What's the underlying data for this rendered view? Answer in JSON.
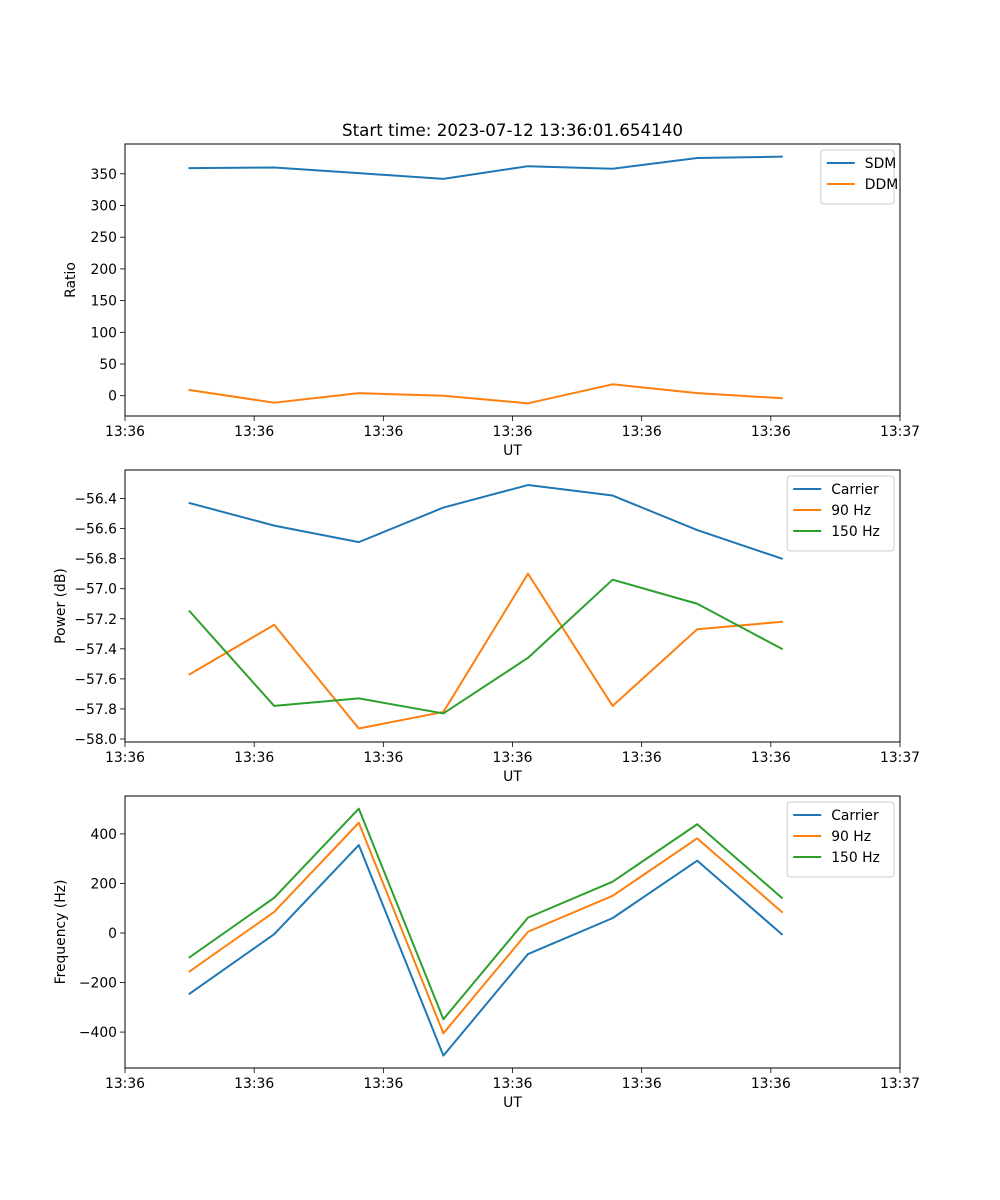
{
  "figure_title": "Start time: 2023-07-12 13:36:01.654140",
  "colors": {
    "blue": "#1f77b4",
    "orange": "#ff7f0e",
    "green": "#2ca02c"
  },
  "chart_data": [
    {
      "type": "line",
      "title": "Start time: 2023-07-12 13:36:01.654140",
      "xlabel": "UT",
      "ylabel": "Ratio",
      "x": [
        0.5,
        1.155,
        1.81,
        2.465,
        3.12,
        3.775,
        4.43,
        5.085
      ],
      "xlim": [
        0,
        6
      ],
      "xticks": [
        0.0,
        1.0,
        2.0,
        3.0,
        4.0,
        5.0,
        6.0
      ],
      "xtick_labels": [
        "13:36",
        "13:36",
        "13:36",
        "13:36",
        "13:36",
        "13:36",
        "13:37"
      ],
      "ylim": [
        -32,
        397
      ],
      "yticks": [
        0,
        50,
        100,
        150,
        200,
        250,
        300,
        350
      ],
      "ytick_labels": [
        "0",
        "50",
        "100",
        "150",
        "200",
        "250",
        "300",
        "350"
      ],
      "legend": "top-right",
      "series": [
        {
          "name": "SDM",
          "color": "blue",
          "values": [
            359,
            360,
            351,
            342,
            362,
            358,
            375,
            377
          ]
        },
        {
          "name": "DDM",
          "color": "orange",
          "values": [
            9,
            -11,
            4,
            0,
            -12,
            18,
            4,
            -4
          ]
        }
      ]
    },
    {
      "type": "line",
      "title": "",
      "xlabel": "UT",
      "ylabel": "Power (dB)",
      "x": [
        0.5,
        1.155,
        1.81,
        2.465,
        3.12,
        3.775,
        4.43,
        5.085
      ],
      "xlim": [
        0,
        6
      ],
      "xticks": [
        0.0,
        1.0,
        2.0,
        3.0,
        4.0,
        5.0,
        6.0
      ],
      "xtick_labels": [
        "13:36",
        "13:36",
        "13:36",
        "13:36",
        "13:36",
        "13:36",
        "13:37"
      ],
      "ylim": [
        -58.02,
        -56.21
      ],
      "yticks": [
        -58.0,
        -57.8,
        -57.6,
        -57.4,
        -57.2,
        -57.0,
        -56.8,
        -56.6,
        -56.4
      ],
      "ytick_labels": [
        "−58.0",
        "−57.8",
        "−57.6",
        "−57.4",
        "−57.2",
        "−57.0",
        "−56.8",
        "−56.6",
        "−56.4"
      ],
      "legend": "top-right",
      "series": [
        {
          "name": "Carrier",
          "color": "blue",
          "values": [
            -56.43,
            -56.58,
            -56.69,
            -56.46,
            -56.31,
            -56.38,
            -56.61,
            -56.8
          ]
        },
        {
          "name": "90 Hz",
          "color": "orange",
          "values": [
            -57.57,
            -57.24,
            -57.93,
            -57.82,
            -56.9,
            -57.78,
            -57.27,
            -57.22
          ]
        },
        {
          "name": "150 Hz",
          "color": "green",
          "values": [
            -57.15,
            -57.78,
            -57.73,
            -57.83,
            -57.46,
            -56.94,
            -57.1,
            -57.4
          ]
        }
      ]
    },
    {
      "type": "line",
      "title": "",
      "xlabel": "UT",
      "ylabel": "Frequency (Hz)",
      "x": [
        0.5,
        1.155,
        1.81,
        2.465,
        3.12,
        3.775,
        4.43,
        5.085
      ],
      "xlim": [
        0,
        6
      ],
      "xticks": [
        0.0,
        1.0,
        2.0,
        3.0,
        4.0,
        5.0,
        6.0
      ],
      "xtick_labels": [
        "13:36",
        "13:36",
        "13:36",
        "13:36",
        "13:36",
        "13:36",
        "13:37"
      ],
      "ylim": [
        -545,
        553
      ],
      "yticks": [
        -400,
        -200,
        0,
        200,
        400
      ],
      "ytick_labels": [
        "−400",
        "−200",
        "0",
        "200",
        "400"
      ],
      "legend": "top-right",
      "series": [
        {
          "name": "Carrier",
          "color": "blue",
          "values": [
            -245,
            -5,
            355,
            -495,
            -85,
            60,
            292,
            -5
          ]
        },
        {
          "name": "90 Hz",
          "color": "orange",
          "values": [
            -155,
            85,
            445,
            -405,
            5,
            150,
            382,
            85
          ]
        },
        {
          "name": "150 Hz",
          "color": "green",
          "values": [
            -98,
            142,
            502,
            -348,
            62,
            207,
            439,
            142
          ]
        }
      ]
    }
  ]
}
